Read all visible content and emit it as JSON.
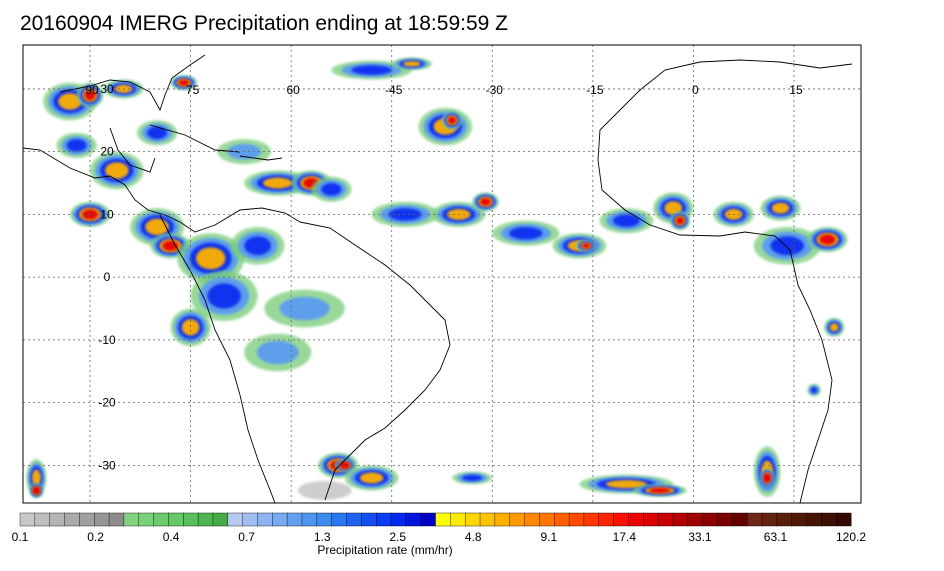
{
  "title": "20160904 IMERG Precipitation ending at 18:59:59 Z",
  "map": {
    "lon_range": [
      -100,
      25
    ],
    "lat_range": [
      -36,
      37
    ],
    "lon_labels": [
      {
        "lon": -90,
        "text": "90"
      },
      {
        "lon": -75,
        "text": "75"
      },
      {
        "lon": -60,
        "text": "60"
      },
      {
        "lon": -45,
        "text": "-45"
      },
      {
        "lon": -30,
        "text": "-30"
      },
      {
        "lon": -15,
        "text": "-15"
      },
      {
        "lon": 0,
        "text": "0"
      },
      {
        "lon": 15,
        "text": "15"
      }
    ],
    "lat_labels": [
      {
        "lat": 30,
        "text": "30"
      },
      {
        "lat": 20,
        "text": "20"
      },
      {
        "lat": 10,
        "text": "10"
      },
      {
        "lat": 0,
        "text": "0"
      },
      {
        "lat": -10,
        "text": "-10"
      },
      {
        "lat": -20,
        "text": "-20"
      },
      {
        "lat": -30,
        "text": "-30"
      }
    ]
  },
  "colorbar": {
    "title": "Precipitation rate (mm/hr)",
    "tick_labels": [
      "0.1",
      "0.2",
      "0.4",
      "0.7",
      "1.3",
      "2.5",
      "4.8",
      "9.1",
      "17.4",
      "33.1",
      "63.1",
      "120.2"
    ],
    "colors": [
      "#c8c8c8",
      "#bebebe",
      "#b4b4b4",
      "#aaaaaa",
      "#a0a0a0",
      "#969696",
      "#8c8c8c",
      "#82d282",
      "#78d278",
      "#6ec86e",
      "#64c864",
      "#5abe5a",
      "#50b450",
      "#46aa46",
      "#b4c8f0",
      "#a0bef0",
      "#8cb4f0",
      "#78aaf0",
      "#64a0f0",
      "#5096f0",
      "#3c8cf0",
      "#2878f0",
      "#1e64f0",
      "#1450f0",
      "#0a3cf0",
      "#0028f0",
      "#0014dc",
      "#0000c8",
      "#ffff00",
      "#ffeb00",
      "#ffd700",
      "#ffc300",
      "#ffaf00",
      "#ff9b00",
      "#ff8700",
      "#ff7300",
      "#ff5f00",
      "#ff4b00",
      "#ff3700",
      "#ff2300",
      "#ff0f00",
      "#f00000",
      "#dc0000",
      "#c80000",
      "#b40000",
      "#a00000",
      "#8c0000",
      "#780000",
      "#640000",
      "#6e2814",
      "#64230f",
      "#5a1e0a",
      "#501905",
      "#461400",
      "#3c0f00",
      "#320a00"
    ]
  },
  "precipitation_cells": [
    {
      "lon": -93,
      "lat": 28,
      "rx": 4,
      "ry": 3,
      "level": 3
    },
    {
      "lon": -90,
      "lat": 29,
      "rx": 2,
      "ry": 2,
      "level": 4
    },
    {
      "lon": -85,
      "lat": 30,
      "rx": 3,
      "ry": 1.5,
      "level": 3
    },
    {
      "lon": -76,
      "lat": 31,
      "rx": 2,
      "ry": 1.2,
      "level": 4
    },
    {
      "lon": -92,
      "lat": 21,
      "rx": 3,
      "ry": 2,
      "level": 2
    },
    {
      "lon": -86,
      "lat": 17,
      "rx": 4,
      "ry": 3,
      "level": 3
    },
    {
      "lon": -90,
      "lat": 10,
      "rx": 3,
      "ry": 2,
      "level": 4
    },
    {
      "lon": -80,
      "lat": 8,
      "rx": 4,
      "ry": 3,
      "level": 3
    },
    {
      "lon": -78,
      "lat": 5,
      "rx": 3,
      "ry": 2,
      "level": 4
    },
    {
      "lon": -72,
      "lat": 3,
      "rx": 5,
      "ry": 4,
      "level": 3
    },
    {
      "lon": -70,
      "lat": -3,
      "rx": 5,
      "ry": 4,
      "level": 2
    },
    {
      "lon": -75,
      "lat": -8,
      "rx": 3,
      "ry": 3,
      "level": 3
    },
    {
      "lon": -65,
      "lat": 5,
      "rx": 4,
      "ry": 3,
      "level": 2
    },
    {
      "lon": -62,
      "lat": 15,
      "rx": 5,
      "ry": 2,
      "level": 3
    },
    {
      "lon": -57,
      "lat": 15,
      "rx": 3,
      "ry": 2,
      "level": 4
    },
    {
      "lon": -54,
      "lat": 14,
      "rx": 3,
      "ry": 2,
      "level": 2
    },
    {
      "lon": -58,
      "lat": -5,
      "rx": 6,
      "ry": 3,
      "level": 1
    },
    {
      "lon": -48,
      "lat": 33,
      "rx": 6,
      "ry": 1.5,
      "level": 2
    },
    {
      "lon": -42,
      "lat": 34,
      "rx": 3,
      "ry": 1,
      "level": 3
    },
    {
      "lon": -37,
      "lat": 24,
      "rx": 4,
      "ry": 3,
      "level": 3
    },
    {
      "lon": -36,
      "lat": 25,
      "rx": 1.5,
      "ry": 1.5,
      "level": 4
    },
    {
      "lon": -43,
      "lat": 10,
      "rx": 5,
      "ry": 2,
      "level": 2
    },
    {
      "lon": -35,
      "lat": 10,
      "rx": 4,
      "ry": 2,
      "level": 3
    },
    {
      "lon": -31,
      "lat": 12,
      "rx": 2,
      "ry": 1.5,
      "level": 4
    },
    {
      "lon": -25,
      "lat": 7,
      "rx": 5,
      "ry": 2,
      "level": 2
    },
    {
      "lon": -17,
      "lat": 5,
      "rx": 4,
      "ry": 2,
      "level": 3
    },
    {
      "lon": -16,
      "lat": 5,
      "rx": 1.5,
      "ry": 1,
      "level": 4
    },
    {
      "lon": -10,
      "lat": 9,
      "rx": 4,
      "ry": 2,
      "level": 2
    },
    {
      "lon": -3,
      "lat": 11,
      "rx": 3,
      "ry": 2.5,
      "level": 3
    },
    {
      "lon": -2,
      "lat": 9,
      "rx": 1.5,
      "ry": 1.5,
      "level": 4
    },
    {
      "lon": 6,
      "lat": 10,
      "rx": 3,
      "ry": 2,
      "level": 3
    },
    {
      "lon": 13,
      "lat": 11,
      "rx": 3,
      "ry": 2,
      "level": 3
    },
    {
      "lon": 14,
      "lat": 5,
      "rx": 5,
      "ry": 3,
      "level": 2
    },
    {
      "lon": 20,
      "lat": 6,
      "rx": 3,
      "ry": 2,
      "level": 4
    },
    {
      "lon": 21,
      "lat": -8,
      "rx": 1.5,
      "ry": 1.5,
      "level": 3
    },
    {
      "lon": 18,
      "lat": -18,
      "rx": 1,
      "ry": 1,
      "level": 2
    },
    {
      "lon": -53,
      "lat": -30,
      "rx": 3,
      "ry": 2,
      "level": 4
    },
    {
      "lon": -52,
      "lat": -30,
      "rx": 1.5,
      "ry": 1,
      "level": 5
    },
    {
      "lon": -48,
      "lat": -32,
      "rx": 4,
      "ry": 2,
      "level": 3
    },
    {
      "lon": -55,
      "lat": -34,
      "rx": 4,
      "ry": 1.5,
      "level": 0
    },
    {
      "lon": -33,
      "lat": -32,
      "rx": 3,
      "ry": 1,
      "level": 2
    },
    {
      "lon": -10,
      "lat": -33,
      "rx": 7,
      "ry": 1.5,
      "level": 3
    },
    {
      "lon": -5,
      "lat": -34,
      "rx": 4,
      "ry": 1,
      "level": 4
    },
    {
      "lon": 11,
      "lat": -31,
      "rx": 2,
      "ry": 4,
      "level": 3
    },
    {
      "lon": 11,
      "lat": -32,
      "rx": 1,
      "ry": 1.5,
      "level": 5
    },
    {
      "lon": -98,
      "lat": -32,
      "rx": 1.5,
      "ry": 3,
      "level": 3
    },
    {
      "lon": -98,
      "lat": -34,
      "rx": 1,
      "ry": 1.2,
      "level": 5
    },
    {
      "lon": -67,
      "lat": 20,
      "rx": 4,
      "ry": 2,
      "level": 1
    },
    {
      "lon": -80,
      "lat": 23,
      "rx": 3,
      "ry": 2,
      "level": 2
    },
    {
      "lon": -62,
      "lat": -12,
      "rx": 5,
      "ry": 3,
      "level": 1
    }
  ]
}
